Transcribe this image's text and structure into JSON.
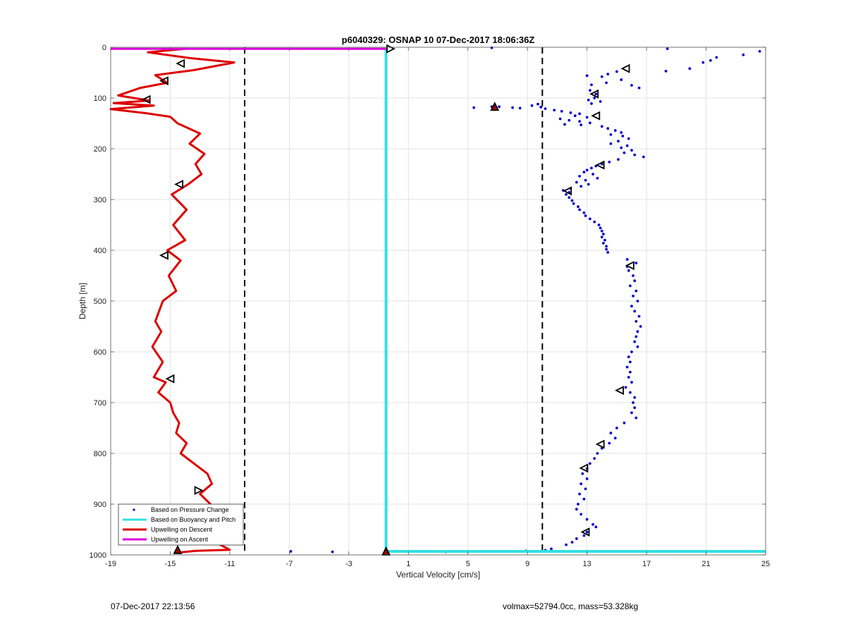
{
  "chart_data": {
    "type": "line",
    "title": "p6040329: OSNAP 10 07-Dec-2017 18:06:36Z",
    "xlabel": "Vertical Velocity [cm/s]",
    "ylabel": "Depth [m]",
    "xlim": [
      -19,
      25
    ],
    "ylim": [
      0,
      1000
    ],
    "y_reversed": true,
    "grid": true,
    "xticks": [
      -19,
      -15,
      -11,
      -7,
      -3,
      1,
      5,
      9,
      13,
      17,
      21,
      25
    ],
    "yticks": [
      0,
      100,
      200,
      300,
      400,
      500,
      600,
      700,
      800,
      900,
      1000
    ],
    "reference_lines_x": [
      -10,
      10
    ],
    "legend_position": "bottom-left",
    "legend": [
      {
        "label": "Based on Pressure Change",
        "color": "#0000cc",
        "style": "dots"
      },
      {
        "label": "Based on Buoyancy and Pitch",
        "color": "#33e0e0",
        "style": "line"
      },
      {
        "label": "Upwelling on Descent",
        "color": "#dd0000",
        "style": "line"
      },
      {
        "label": "Upwelling on Ascent",
        "color": "#dd00dd",
        "style": "line"
      }
    ],
    "series": [
      {
        "name": "Based on Pressure Change",
        "color": "#0000cc",
        "points": [
          [
            18.4,
            3
          ],
          [
            24.6,
            8
          ],
          [
            23.5,
            15
          ],
          [
            21.7,
            20
          ],
          [
            21.3,
            26
          ],
          [
            20.8,
            30
          ],
          [
            19.9,
            42
          ],
          [
            18.3,
            47
          ],
          [
            6.6,
            1
          ],
          [
            15.0,
            48
          ],
          [
            14.4,
            53
          ],
          [
            14.0,
            58
          ],
          [
            13.0,
            56
          ],
          [
            15.3,
            64
          ],
          [
            14.3,
            70
          ],
          [
            13.3,
            74
          ],
          [
            16.0,
            75
          ],
          [
            16.5,
            80
          ],
          [
            13.2,
            85
          ],
          [
            13.6,
            92
          ],
          [
            13.5,
            100
          ],
          [
            13.1,
            104
          ],
          [
            13.9,
            107
          ],
          [
            13.3,
            111
          ],
          [
            5.4,
            119
          ],
          [
            6.6,
            117
          ],
          [
            7.1,
            117
          ],
          [
            8.0,
            119
          ],
          [
            8.5,
            120
          ],
          [
            9.3,
            115
          ],
          [
            9.7,
            112
          ],
          [
            9.9,
            118
          ],
          [
            10.2,
            121
          ],
          [
            10.8,
            124
          ],
          [
            11.3,
            126
          ],
          [
            11.9,
            129
          ],
          [
            12.5,
            131
          ],
          [
            12.2,
            135
          ],
          [
            13.0,
            138
          ],
          [
            11.2,
            141
          ],
          [
            11.8,
            144
          ],
          [
            12.5,
            146
          ],
          [
            13.2,
            149
          ],
          [
            11.5,
            152
          ],
          [
            12.6,
            153
          ],
          [
            14.0,
            156
          ],
          [
            14.4,
            160
          ],
          [
            14.9,
            164
          ],
          [
            15.3,
            168
          ],
          [
            14.6,
            172
          ],
          [
            15.4,
            175
          ],
          [
            15.8,
            180
          ],
          [
            15.1,
            185
          ],
          [
            14.6,
            190
          ],
          [
            15.7,
            194
          ],
          [
            15.3,
            198
          ],
          [
            16.0,
            203
          ],
          [
            15.5,
            208
          ],
          [
            16.2,
            212
          ],
          [
            16.8,
            216
          ],
          [
            15.1,
            221
          ],
          [
            14.5,
            226
          ],
          [
            14.0,
            230
          ],
          [
            13.6,
            234
          ],
          [
            13.3,
            238
          ],
          [
            13.0,
            242
          ],
          [
            12.8,
            246
          ],
          [
            13.4,
            250
          ],
          [
            12.5,
            254
          ],
          [
            13.7,
            258
          ],
          [
            12.9,
            262
          ],
          [
            12.3,
            266
          ],
          [
            13.1,
            270
          ],
          [
            12.6,
            274
          ],
          [
            11.9,
            278
          ],
          [
            11.4,
            282
          ],
          [
            11.8,
            286
          ],
          [
            11.6,
            290
          ],
          [
            11.8,
            296
          ],
          [
            12.0,
            302
          ],
          [
            12.1,
            308
          ],
          [
            12.4,
            314
          ],
          [
            12.5,
            320
          ],
          [
            12.8,
            326
          ],
          [
            12.9,
            332
          ],
          [
            13.2,
            338
          ],
          [
            13.5,
            344
          ],
          [
            13.8,
            350
          ],
          [
            13.9,
            356
          ],
          [
            14.0,
            362
          ],
          [
            14.1,
            368
          ],
          [
            14.0,
            374
          ],
          [
            14.2,
            380
          ],
          [
            14.1,
            386
          ],
          [
            14.3,
            392
          ],
          [
            14.3,
            398
          ],
          [
            14.4,
            404
          ],
          [
            15.7,
            418
          ],
          [
            16.3,
            425
          ],
          [
            15.7,
            432
          ],
          [
            15.8,
            440
          ],
          [
            16.1,
            450
          ],
          [
            16.2,
            460
          ],
          [
            15.9,
            470
          ],
          [
            16.3,
            480
          ],
          [
            16.1,
            490
          ],
          [
            16.4,
            500
          ],
          [
            16.0,
            510
          ],
          [
            16.2,
            520
          ],
          [
            16.5,
            530
          ],
          [
            16.3,
            540
          ],
          [
            16.6,
            550
          ],
          [
            16.4,
            560
          ],
          [
            16.3,
            570
          ],
          [
            16.2,
            580
          ],
          [
            16.4,
            590
          ],
          [
            16.0,
            600
          ],
          [
            15.8,
            610
          ],
          [
            15.9,
            620
          ],
          [
            15.7,
            630
          ],
          [
            15.9,
            640
          ],
          [
            15.8,
            650
          ],
          [
            16.0,
            660
          ],
          [
            15.6,
            670
          ],
          [
            15.9,
            680
          ],
          [
            16.2,
            690
          ],
          [
            16.1,
            700
          ],
          [
            16.2,
            710
          ],
          [
            16.0,
            720
          ],
          [
            16.3,
            730
          ],
          [
            15.5,
            740
          ],
          [
            15.0,
            750
          ],
          [
            14.6,
            760
          ],
          [
            14.9,
            770
          ],
          [
            14.5,
            780
          ],
          [
            14.0,
            790
          ],
          [
            13.7,
            800
          ],
          [
            13.5,
            810
          ],
          [
            13.2,
            820
          ],
          [
            13.0,
            830
          ],
          [
            12.7,
            840
          ],
          [
            13.0,
            850
          ],
          [
            12.6,
            860
          ],
          [
            12.9,
            870
          ],
          [
            12.5,
            880
          ],
          [
            12.8,
            890
          ],
          [
            12.4,
            900
          ],
          [
            12.3,
            910
          ],
          [
            12.6,
            920
          ],
          [
            13.0,
            930
          ],
          [
            13.4,
            940
          ],
          [
            13.6,
            945
          ],
          [
            13.0,
            955
          ],
          [
            12.8,
            962
          ],
          [
            12.3,
            968
          ],
          [
            12.0,
            975
          ],
          [
            11.6,
            980
          ],
          [
            10.6,
            988
          ],
          [
            10.2,
            991
          ],
          [
            8.9,
            992
          ],
          [
            6.3,
            993
          ],
          [
            3.5,
            994
          ],
          [
            0.0,
            993
          ],
          [
            -4.1,
            994
          ],
          [
            -6.9,
            993
          ]
        ]
      },
      {
        "name": "Based on Buoyancy and Pitch",
        "color": "#33e0e0",
        "x": [
          -0.5,
          -0.5,
          -0.5,
          25
        ],
        "y": [
          0,
          990,
          993,
          993
        ]
      },
      {
        "name": "Upwelling on Descent",
        "color": "#dd0000",
        "x": [
          -14.0,
          -16.5,
          -13.5,
          -10.7,
          -13.4,
          -16.0,
          -15.2,
          -17.0,
          -18.5,
          -16.4,
          -18.8,
          -16.1,
          -19.0,
          -16.6,
          -15.0,
          -14.5,
          -13.0,
          -13.7,
          -12.7,
          -13.3,
          -12.9,
          -13.8,
          -14.9,
          -13.9,
          -14.8,
          -14.0,
          -15.2,
          -14.3,
          -15.1,
          -14.6,
          -15.5,
          -16.0,
          -15.6,
          -16.2,
          -15.5,
          -16.1,
          -15.3,
          -15.8,
          -15.0,
          -14.8,
          -14.4,
          -14.6,
          -13.9,
          -14.3,
          -13.4,
          -12.5,
          -12.2,
          -13.0,
          -12.3,
          -13.8,
          -12.6,
          -12.9,
          -11.0,
          -13.3,
          -14.3
        ],
        "y": [
          3,
          10,
          22,
          30,
          45,
          55,
          70,
          80,
          95,
          105,
          110,
          115,
          122,
          130,
          137,
          150,
          170,
          190,
          210,
          230,
          250,
          270,
          290,
          320,
          350,
          380,
          400,
          420,
          450,
          480,
          500,
          540,
          560,
          590,
          620,
          650,
          660,
          680,
          700,
          720,
          740,
          760,
          780,
          800,
          820,
          840,
          860,
          880,
          900,
          920,
          940,
          960,
          990,
          992,
          995
        ]
      },
      {
        "name": "Upwelling on Ascent",
        "color": "#dd00dd",
        "x": [
          -19,
          -0.5
        ],
        "y": [
          3,
          3
        ]
      }
    ],
    "markers": [
      {
        "shape": "triangle-left",
        "x": -14.3,
        "y": 32
      },
      {
        "shape": "triangle-left",
        "x": -15.4,
        "y": 66
      },
      {
        "shape": "triangle-left",
        "x": -16.6,
        "y": 103
      },
      {
        "shape": "triangle-left",
        "x": -14.4,
        "y": 270
      },
      {
        "shape": "triangle-left",
        "x": -15.4,
        "y": 410
      },
      {
        "shape": "triangle-left",
        "x": -15.0,
        "y": 653
      },
      {
        "shape": "triangle-right",
        "x": -13.1,
        "y": 873
      },
      {
        "shape": "triangle-left",
        "x": -14.2,
        "y": 925
      },
      {
        "shape": "triangle-up",
        "x": -14.5,
        "y": 990
      },
      {
        "shape": "triangle-right",
        "x": -0.2,
        "y": 3
      },
      {
        "shape": "triangle-up",
        "x": -0.5,
        "y": 993
      },
      {
        "shape": "triangle-left",
        "x": 15.6,
        "y": 42
      },
      {
        "shape": "triangle-left",
        "x": 13.5,
        "y": 92
      },
      {
        "shape": "triangle-up",
        "x": 6.8,
        "y": 117
      },
      {
        "shape": "triangle-left",
        "x": 13.6,
        "y": 135
      },
      {
        "shape": "triangle-left",
        "x": 13.9,
        "y": 232
      },
      {
        "shape": "triangle-left",
        "x": 11.7,
        "y": 283
      },
      {
        "shape": "triangle-left",
        "x": 15.9,
        "y": 430
      },
      {
        "shape": "triangle-left",
        "x": 15.2,
        "y": 676
      },
      {
        "shape": "triangle-left",
        "x": 13.9,
        "y": 782
      },
      {
        "shape": "triangle-left",
        "x": 12.8,
        "y": 829
      },
      {
        "shape": "triangle-left",
        "x": 12.9,
        "y": 955
      }
    ]
  },
  "footer": {
    "timestamp": "07-Dec-2017 22:13:56",
    "summary": "volmax=52794.0cc, mass=53.328kg"
  }
}
